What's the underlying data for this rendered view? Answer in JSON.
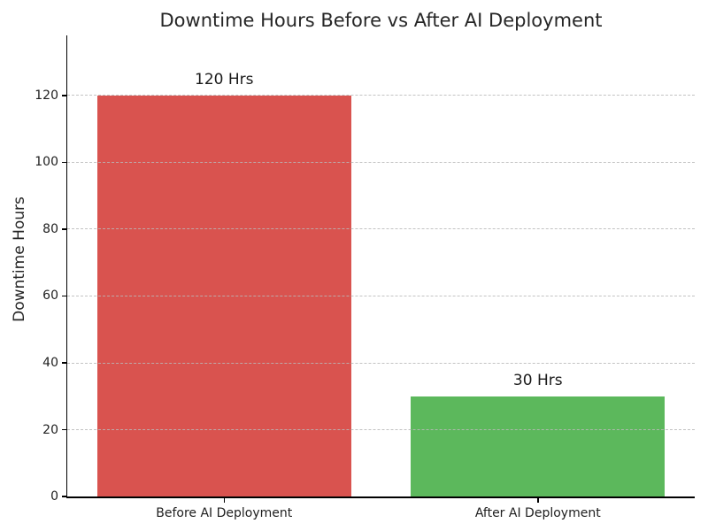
{
  "chart_data": {
    "type": "bar",
    "title": "Downtime Hours Before vs After AI Deployment",
    "categories": [
      "Before AI Deployment",
      "After AI Deployment"
    ],
    "values": [
      120,
      30
    ],
    "bar_labels": [
      "120 Hrs",
      "30 Hrs"
    ],
    "bar_colors": [
      "#d9534f",
      "#5cb85c"
    ],
    "xlabel": "",
    "ylabel": "Downtime Hours",
    "yticks": [
      0,
      20,
      40,
      60,
      80,
      100,
      120
    ],
    "ylim": [
      0,
      138
    ],
    "grid": {
      "axis": "y",
      "style": "dashed",
      "color": "#cccccc",
      "drawn_over_bars": true
    },
    "legend": "none",
    "background": "#ffffff",
    "text_color": "#262626"
  }
}
